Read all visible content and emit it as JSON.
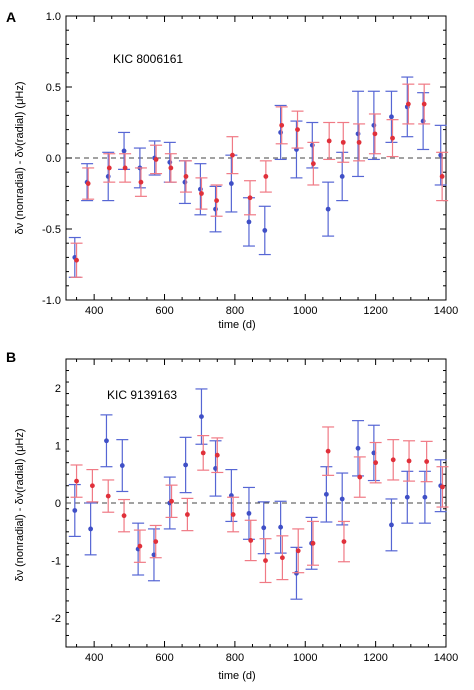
{
  "colors": {
    "blue": "#3f4fc6",
    "red": "#e0303a",
    "bar_red": "#f07a85",
    "bar_blue": "#5666d4",
    "zero_line": "#444444"
  },
  "chart_data": [
    {
      "type": "scatter",
      "panel": "A",
      "annotation": "KIC 8006161",
      "xlabel": "time (d)",
      "ylabel": "δν (nonradial) - δν(radial)  (μHz)",
      "xlim": [
        320,
        1400
      ],
      "ylim": [
        -1.0,
        1.0
      ],
      "xticks": [
        400,
        600,
        800,
        1000,
        1200,
        1400
      ],
      "yticks": [
        -1.0,
        -0.5,
        0.0,
        0.5,
        1.0
      ],
      "ytick_labels": [
        "-1.0",
        "-0.5",
        "0.0",
        "0.5",
        "1.0"
      ],
      "zero_line": 0,
      "series": [
        {
          "color": "blue",
          "points": [
            {
              "x": 345,
              "y": -0.7,
              "err": 0.14
            },
            {
              "x": 380,
              "y": -0.17,
              "err": 0.13
            },
            {
              "x": 440,
              "y": -0.13,
              "err": 0.17
            },
            {
              "x": 485,
              "y": 0.05,
              "err": 0.13
            },
            {
              "x": 530,
              "y": -0.07,
              "err": 0.14
            },
            {
              "x": 572,
              "y": 0.0,
              "err": 0.12
            },
            {
              "x": 615,
              "y": -0.03,
              "err": 0.14
            },
            {
              "x": 658,
              "y": -0.17,
              "err": 0.15
            },
            {
              "x": 702,
              "y": -0.22,
              "err": 0.18
            },
            {
              "x": 745,
              "y": -0.36,
              "err": 0.16
            },
            {
              "x": 790,
              "y": -0.18,
              "err": 0.2
            },
            {
              "x": 840,
              "y": -0.45,
              "err": 0.17
            },
            {
              "x": 885,
              "y": -0.51,
              "err": 0.17
            },
            {
              "x": 930,
              "y": 0.18,
              "err": 0.19
            },
            {
              "x": 975,
              "y": 0.06,
              "err": 0.2
            },
            {
              "x": 1020,
              "y": 0.09,
              "err": 0.16
            },
            {
              "x": 1065,
              "y": -0.36,
              "err": 0.19
            },
            {
              "x": 1105,
              "y": -0.13,
              "err": 0.17
            },
            {
              "x": 1150,
              "y": 0.17,
              "err": 0.3
            },
            {
              "x": 1195,
              "y": 0.23,
              "err": 0.24
            },
            {
              "x": 1245,
              "y": 0.29,
              "err": 0.18
            },
            {
              "x": 1290,
              "y": 0.36,
              "err": 0.21
            },
            {
              "x": 1335,
              "y": 0.26,
              "err": 0.2
            },
            {
              "x": 1385,
              "y": 0.02,
              "err": 0.21
            }
          ]
        },
        {
          "color": "red",
          "points": [
            {
              "x": 350,
              "y": -0.72,
              "err": 0.12
            },
            {
              "x": 383,
              "y": -0.18,
              "err": 0.11
            },
            {
              "x": 443,
              "y": -0.07,
              "err": 0.1
            },
            {
              "x": 488,
              "y": -0.07,
              "err": 0.1
            },
            {
              "x": 533,
              "y": -0.17,
              "err": 0.1
            },
            {
              "x": 576,
              "y": -0.01,
              "err": 0.1
            },
            {
              "x": 618,
              "y": -0.07,
              "err": 0.1
            },
            {
              "x": 661,
              "y": -0.13,
              "err": 0.11
            },
            {
              "x": 705,
              "y": -0.25,
              "err": 0.11
            },
            {
              "x": 748,
              "y": -0.3,
              "err": 0.11
            },
            {
              "x": 793,
              "y": 0.02,
              "err": 0.13
            },
            {
              "x": 843,
              "y": -0.28,
              "err": 0.12
            },
            {
              "x": 888,
              "y": -0.13,
              "err": 0.11
            },
            {
              "x": 933,
              "y": 0.23,
              "err": 0.13
            },
            {
              "x": 978,
              "y": 0.2,
              "err": 0.13
            },
            {
              "x": 1023,
              "y": -0.04,
              "err": 0.15
            },
            {
              "x": 1068,
              "y": 0.12,
              "err": 0.13
            },
            {
              "x": 1108,
              "y": 0.11,
              "err": 0.14
            },
            {
              "x": 1153,
              "y": 0.11,
              "err": 0.13
            },
            {
              "x": 1198,
              "y": 0.17,
              "err": 0.14
            },
            {
              "x": 1248,
              "y": 0.14,
              "err": 0.13
            },
            {
              "x": 1293,
              "y": 0.38,
              "err": 0.14
            },
            {
              "x": 1338,
              "y": 0.38,
              "err": 0.14
            },
            {
              "x": 1389,
              "y": -0.13,
              "err": 0.17
            }
          ]
        }
      ]
    },
    {
      "type": "scatter",
      "panel": "B",
      "annotation": "KIC 9139163",
      "xlabel": "time (d)",
      "ylabel": "δν (nonradial) - δν(radial)  (μHz)",
      "xlim": [
        320,
        1400
      ],
      "ylim": [
        -2.5,
        2.5
      ],
      "xticks": [
        400,
        600,
        800,
        1000,
        1200,
        1400
      ],
      "yticks": [
        -2,
        -1,
        0,
        1,
        2
      ],
      "ytick_labels": [
        "-2",
        "-1",
        "0",
        "1",
        "2"
      ],
      "zero_line": 0,
      "series": [
        {
          "color": "blue",
          "points": [
            {
              "x": 345,
              "y": -0.13,
              "err": 0.45
            },
            {
              "x": 390,
              "y": -0.45,
              "err": 0.45
            },
            {
              "x": 435,
              "y": 1.08,
              "err": 0.45
            },
            {
              "x": 480,
              "y": 0.65,
              "err": 0.45
            },
            {
              "x": 525,
              "y": -0.8,
              "err": 0.45
            },
            {
              "x": 570,
              "y": -0.9,
              "err": 0.45
            },
            {
              "x": 615,
              "y": 0.0,
              "err": 0.45
            },
            {
              "x": 660,
              "y": 0.66,
              "err": 0.48
            },
            {
              "x": 705,
              "y": 1.5,
              "err": 0.48
            },
            {
              "x": 745,
              "y": 0.6,
              "err": 0.48
            },
            {
              "x": 790,
              "y": 0.13,
              "err": 0.45
            },
            {
              "x": 840,
              "y": -0.18,
              "err": 0.45
            },
            {
              "x": 882,
              "y": -0.43,
              "err": 0.45
            },
            {
              "x": 930,
              "y": -0.42,
              "err": 0.45
            },
            {
              "x": 975,
              "y": -1.22,
              "err": 0.45
            },
            {
              "x": 1018,
              "y": -0.7,
              "err": 0.45
            },
            {
              "x": 1060,
              "y": 0.15,
              "err": 0.48
            },
            {
              "x": 1105,
              "y": 0.07,
              "err": 0.45
            },
            {
              "x": 1150,
              "y": 0.95,
              "err": 0.48
            },
            {
              "x": 1195,
              "y": 0.87,
              "err": 0.48
            },
            {
              "x": 1245,
              "y": -0.38,
              "err": 0.45
            },
            {
              "x": 1290,
              "y": 0.1,
              "err": 0.45
            },
            {
              "x": 1340,
              "y": 0.1,
              "err": 0.45
            },
            {
              "x": 1385,
              "y": 0.3,
              "err": 0.45
            }
          ]
        },
        {
          "color": "red",
          "points": [
            {
              "x": 350,
              "y": 0.38,
              "err": 0.28
            },
            {
              "x": 395,
              "y": 0.3,
              "err": 0.28
            },
            {
              "x": 440,
              "y": 0.12,
              "err": 0.28
            },
            {
              "x": 485,
              "y": -0.22,
              "err": 0.28
            },
            {
              "x": 530,
              "y": -0.75,
              "err": 0.28
            },
            {
              "x": 575,
              "y": -0.67,
              "err": 0.28
            },
            {
              "x": 620,
              "y": 0.03,
              "err": 0.28
            },
            {
              "x": 665,
              "y": -0.2,
              "err": 0.28
            },
            {
              "x": 710,
              "y": 0.87,
              "err": 0.3
            },
            {
              "x": 750,
              "y": 0.83,
              "err": 0.3
            },
            {
              "x": 795,
              "y": -0.2,
              "err": 0.3
            },
            {
              "x": 845,
              "y": -0.65,
              "err": 0.35
            },
            {
              "x": 887,
              "y": -1.0,
              "err": 0.38
            },
            {
              "x": 935,
              "y": -0.95,
              "err": 0.38
            },
            {
              "x": 980,
              "y": -0.83,
              "err": 0.38
            },
            {
              "x": 1022,
              "y": -0.7,
              "err": 0.38
            },
            {
              "x": 1065,
              "y": 0.9,
              "err": 0.42
            },
            {
              "x": 1110,
              "y": -0.67,
              "err": 0.35
            },
            {
              "x": 1155,
              "y": 0.45,
              "err": 0.35
            },
            {
              "x": 1200,
              "y": 0.7,
              "err": 0.35
            },
            {
              "x": 1250,
              "y": 0.75,
              "err": 0.35
            },
            {
              "x": 1295,
              "y": 0.73,
              "err": 0.35
            },
            {
              "x": 1345,
              "y": 0.72,
              "err": 0.35
            },
            {
              "x": 1390,
              "y": 0.28,
              "err": 0.35
            }
          ]
        }
      ]
    }
  ]
}
